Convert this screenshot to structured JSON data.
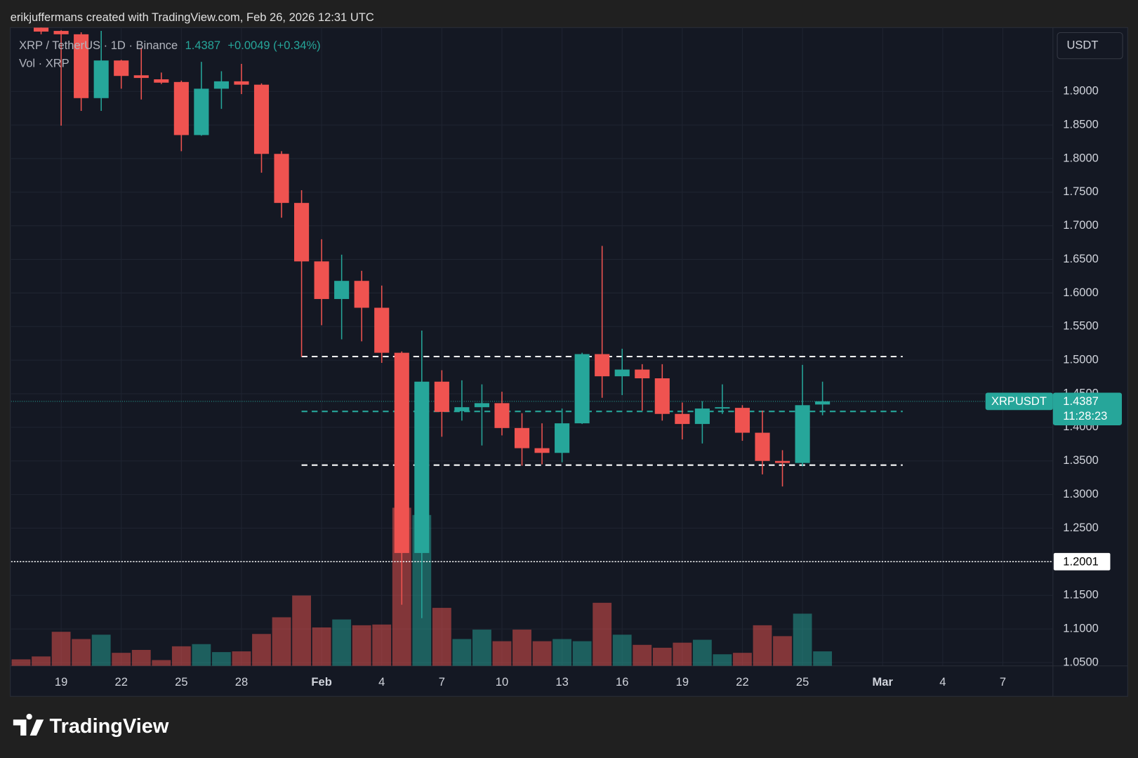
{
  "header": {
    "text": "erikjuffermans created with TradingView.com, Feb 26, 2026 12:31 UTC"
  },
  "footer": {
    "brand": "TradingView"
  },
  "chart_data": {
    "type": "candlestick",
    "symbol": "XRP / TetherUS · 1D · Binance",
    "change": "+0.0049 (+0.34%)",
    "volume_label": "Vol · XRP",
    "currency": "USDT",
    "last_price": {
      "label": "XRPUSDT",
      "countdown": "11:28:23"
    },
    "up_color": "#26a69a",
    "down_color": "#ef5350",
    "x": [
      "2026-01-17",
      "2026-01-18",
      "2026-01-19",
      "2026-01-20",
      "2026-01-21",
      "2026-01-22",
      "2026-01-23",
      "2026-01-24",
      "2026-01-25",
      "2026-01-26",
      "2026-01-27",
      "2026-01-28",
      "2026-01-29",
      "2026-01-30",
      "2026-01-31",
      "2026-02-01",
      "2026-02-02",
      "2026-02-03",
      "2026-02-04",
      "2026-02-05",
      "2026-02-06",
      "2026-02-07",
      "2026-02-08",
      "2026-02-09",
      "2026-02-10",
      "2026-02-11",
      "2026-02-12",
      "2026-02-13",
      "2026-02-14",
      "2026-02-15",
      "2026-02-16",
      "2026-02-17",
      "2026-02-18",
      "2026-02-19",
      "2026-02-20",
      "2026-02-21",
      "2026-02-22",
      "2026-02-23",
      "2026-02-24",
      "2026-02-25",
      "2026-02-26"
    ],
    "open": [
      null,
      1.995,
      1.99,
      1.985,
      1.89,
      1.946,
      1.924,
      1.918,
      1.914,
      1.835,
      1.904,
      1.915,
      1.91,
      1.807,
      1.734,
      1.647,
      1.591,
      1.618,
      1.578,
      1.511,
      1.213,
      1.468,
      1.424,
      1.43,
      1.436,
      1.399,
      1.369,
      1.362,
      1.406,
      1.509,
      1.476,
      1.486,
      1.473,
      1.42,
      1.405,
      1.428,
      1.429,
      1.392,
      1.35,
      1.347,
      1.434
    ],
    "high": [
      null,
      1.998,
      1.991,
      1.988,
      1.99,
      1.947,
      1.965,
      1.928,
      1.916,
      1.944,
      1.93,
      1.941,
      1.912,
      1.811,
      1.753,
      1.68,
      1.657,
      1.633,
      1.611,
      1.513,
      1.544,
      1.485,
      1.47,
      1.464,
      1.453,
      1.421,
      1.406,
      1.428,
      1.511,
      1.67,
      1.517,
      1.494,
      1.494,
      1.437,
      1.439,
      1.464,
      1.433,
      1.425,
      1.366,
      1.493,
      1.468
    ],
    "low": [
      null,
      1.985,
      1.849,
      1.871,
      1.871,
      1.904,
      1.888,
      1.911,
      1.811,
      1.834,
      1.874,
      1.896,
      1.779,
      1.712,
      1.505,
      1.552,
      1.531,
      1.528,
      1.496,
      1.136,
      1.116,
      1.386,
      1.41,
      1.373,
      1.388,
      1.343,
      1.345,
      1.348,
      1.405,
      1.444,
      1.448,
      1.425,
      1.41,
      1.382,
      1.376,
      1.42,
      1.38,
      1.33,
      1.312,
      1.342,
      1.418
    ],
    "close": [
      null,
      1.989,
      1.985,
      1.89,
      1.946,
      1.923,
      1.92,
      1.913,
      1.835,
      1.904,
      1.915,
      1.91,
      1.807,
      1.734,
      1.647,
      1.591,
      1.618,
      1.578,
      1.511,
      1.213,
      1.468,
      1.423,
      1.43,
      1.436,
      1.399,
      1.369,
      1.362,
      1.406,
      1.509,
      1.476,
      1.486,
      1.473,
      1.42,
      1.405,
      1.428,
      1.43,
      1.392,
      1.35,
      1.347,
      1.433,
      1.4387
    ],
    "volume": [
      9,
      13,
      47,
      37,
      43,
      18,
      22,
      8,
      27,
      30,
      19,
      20,
      44,
      67,
      97,
      53,
      64,
      56,
      57,
      218,
      208,
      80,
      37,
      50,
      34,
      50,
      34,
      37,
      34,
      87,
      43,
      29,
      25,
      32,
      36,
      16,
      18,
      56,
      41,
      72,
      20
    ],
    "xlim": [
      "2026-01-17",
      "2026-03-10"
    ],
    "xticks": [
      {
        "value": "2026-01-19",
        "label": "19"
      },
      {
        "value": "2026-01-22",
        "label": "22"
      },
      {
        "value": "2026-01-25",
        "label": "25"
      },
      {
        "value": "2026-01-28",
        "label": "28"
      },
      {
        "value": "2026-02-01",
        "label": "Feb"
      },
      {
        "value": "2026-02-04",
        "label": "4"
      },
      {
        "value": "2026-02-07",
        "label": "7"
      },
      {
        "value": "2026-02-10",
        "label": "10"
      },
      {
        "value": "2026-02-13",
        "label": "13"
      },
      {
        "value": "2026-02-16",
        "label": "16"
      },
      {
        "value": "2026-02-19",
        "label": "19"
      },
      {
        "value": "2026-02-22",
        "label": "22"
      },
      {
        "value": "2026-02-25",
        "label": "25"
      },
      {
        "value": "2026-03-01",
        "label": "Mar"
      },
      {
        "value": "2026-03-04",
        "label": "4"
      },
      {
        "value": "2026-03-07",
        "label": "7"
      }
    ],
    "ylim": [
      1.045,
      1.995
    ],
    "yticks": [
      {
        "value": 1.05,
        "label": "1.0500"
      },
      {
        "value": 1.1,
        "label": "1.1000"
      },
      {
        "value": 1.15,
        "label": "1.1500"
      },
      {
        "value": 1.2,
        "label": "1.2000"
      },
      {
        "value": 1.25,
        "label": "1.2500"
      },
      {
        "value": 1.3,
        "label": "1.3000"
      },
      {
        "value": 1.35,
        "label": "1.3500"
      },
      {
        "value": 1.4,
        "label": "1.4000"
      },
      {
        "value": 1.45,
        "label": "1.4500"
      },
      {
        "value": 1.5,
        "label": "1.5000"
      },
      {
        "value": 1.55,
        "label": "1.5500"
      },
      {
        "value": 1.6,
        "label": "1.6000"
      },
      {
        "value": 1.65,
        "label": "1.6500"
      },
      {
        "value": 1.7,
        "label": "1.7000"
      },
      {
        "value": 1.75,
        "label": "1.7500"
      },
      {
        "value": 1.8,
        "label": "1.8000"
      },
      {
        "value": 1.85,
        "label": "1.8500"
      },
      {
        "value": 1.9,
        "label": "1.9000"
      }
    ],
    "grid": true,
    "price_line": {
      "value": 1.2001,
      "color": "#ffffff"
    },
    "drawn_lines": [
      {
        "value": 1.5054,
        "color": "#ffffff",
        "from": "2026-01-31",
        "to": "2026-03-02"
      },
      {
        "value": 1.4237,
        "color": "#26a69a",
        "from": "2026-01-31",
        "to": "2026-03-02"
      },
      {
        "value": 1.3438,
        "color": "#ffffff",
        "from": "2026-01-31",
        "to": "2026-03-02"
      }
    ]
  }
}
